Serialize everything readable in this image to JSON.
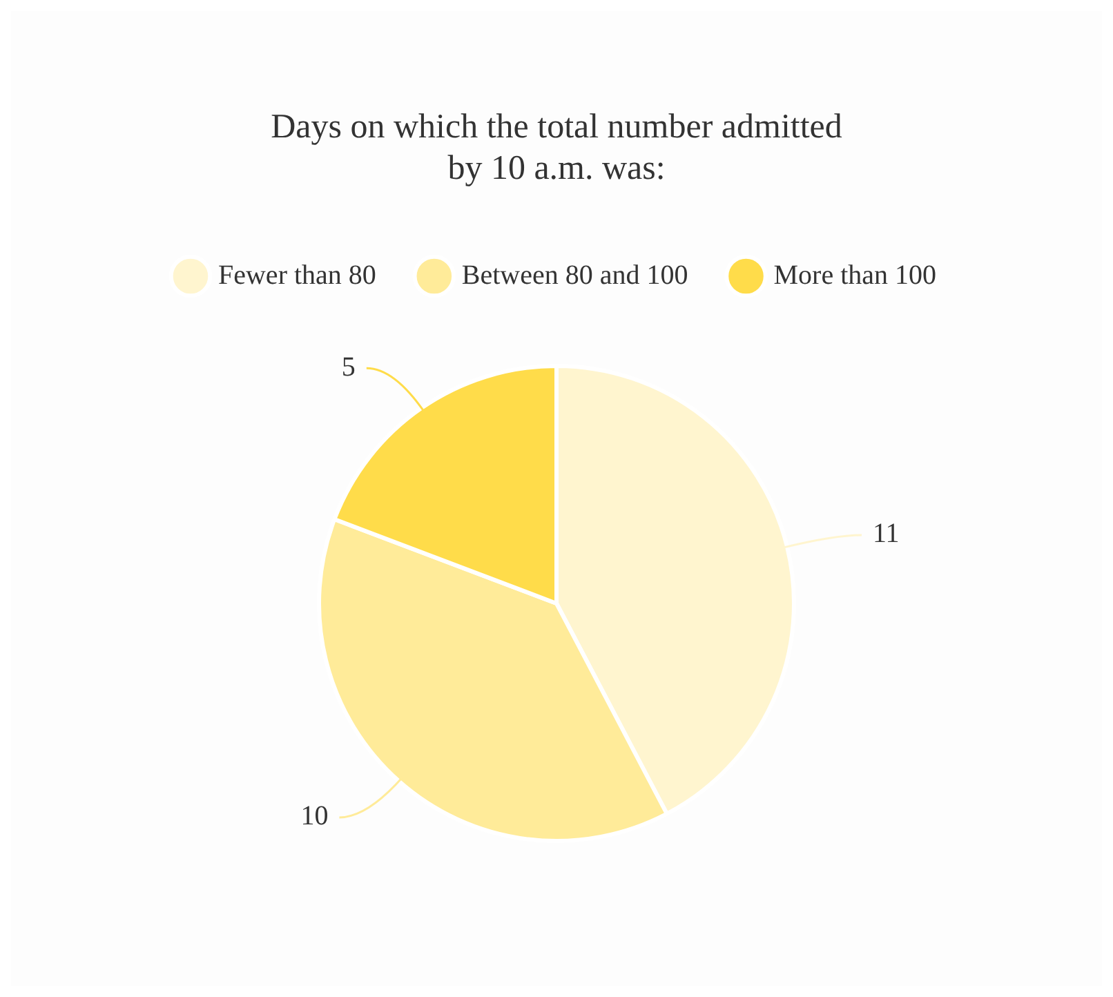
{
  "chart_data": {
    "type": "pie",
    "title": "Days on which the total number admitted\nby 10 a.m. was:",
    "categories": [
      "Fewer than 80",
      "Between 80 and 100",
      "More than 100"
    ],
    "values": [
      11,
      10,
      5
    ],
    "colors": [
      "#fff5cf",
      "#ffeb99",
      "#ffdc4a"
    ],
    "legend": "top",
    "data_labels": true
  }
}
